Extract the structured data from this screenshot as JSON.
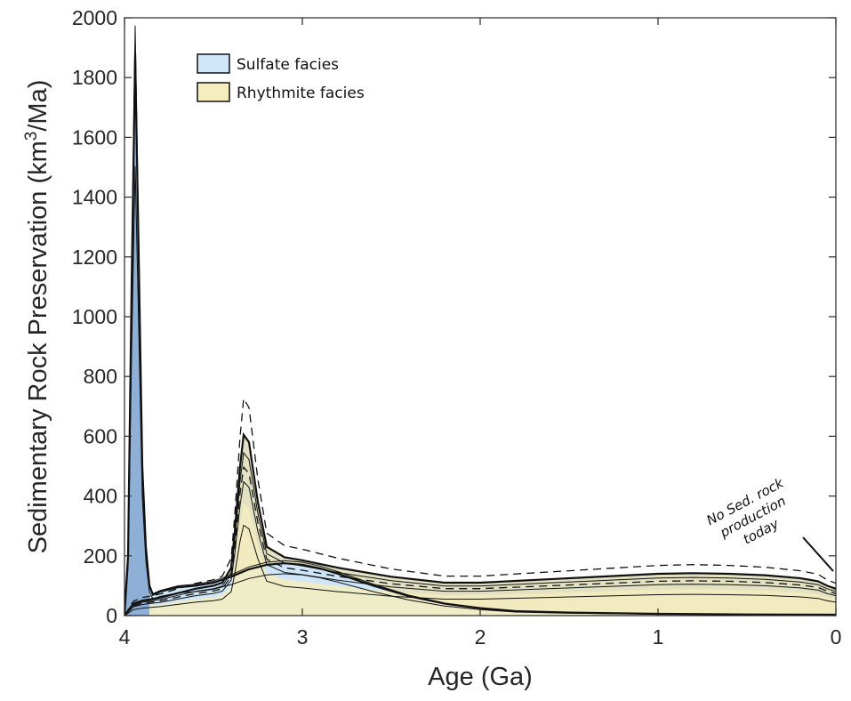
{
  "chart_data": {
    "type": "area",
    "title": "",
    "xlabel": "Age (Ga)",
    "ylabel_main": "Sedimentary Rock Preservation (km",
    "ylabel_sup": "3",
    "ylabel_end": "/Ma)",
    "xlim": [
      4,
      0
    ],
    "ylim": [
      0,
      2000
    ],
    "xticks": [
      4,
      3,
      2,
      1,
      0
    ],
    "yticks": [
      0,
      200,
      400,
      600,
      800,
      1000,
      1200,
      1400,
      1600,
      1800,
      2000
    ],
    "grid": false,
    "legend_position": "top-left",
    "colors": {
      "sulfate": "#cfe6f8",
      "rhythmite": "#f5ecbf",
      "overlap": "#e2e1c2",
      "spike": "#8fb0d6",
      "line": "#111111",
      "axis": "#262626"
    },
    "series": [
      {
        "name": "Sulfate facies",
        "x": [
          4.0,
          3.98,
          3.96,
          3.94,
          3.92,
          3.9,
          3.88,
          3.86,
          3.84,
          3.8,
          3.7,
          3.6,
          3.5,
          3.4,
          3.3,
          3.2,
          3.1,
          3.0,
          2.9,
          2.8,
          2.6,
          2.4,
          2.2,
          2.0,
          1.8,
          1.5,
          1.0,
          0.5,
          0.0
        ],
        "values": [
          0,
          200,
          1100,
          1880,
          1200,
          500,
          230,
          100,
          70,
          80,
          95,
          100,
          110,
          130,
          155,
          170,
          175,
          170,
          158,
          140,
          100,
          65,
          40,
          25,
          15,
          10,
          6,
          4,
          3
        ]
      },
      {
        "name": "Rhythmite facies",
        "x": [
          4.0,
          3.95,
          3.9,
          3.85,
          3.8,
          3.7,
          3.6,
          3.5,
          3.45,
          3.4,
          3.38,
          3.35,
          3.33,
          3.3,
          3.25,
          3.2,
          3.1,
          3.0,
          2.8,
          2.5,
          2.2,
          2.0,
          1.5,
          1.0,
          0.8,
          0.6,
          0.4,
          0.2,
          0.1,
          0.05,
          0.0
        ],
        "values": [
          0,
          40,
          50,
          55,
          60,
          75,
          90,
          100,
          110,
          160,
          280,
          500,
          605,
          580,
          380,
          230,
          195,
          185,
          160,
          130,
          110,
          110,
          125,
          140,
          142,
          140,
          135,
          125,
          115,
          100,
          90
        ]
      }
    ],
    "legend": [
      {
        "label": "Sulfate facies",
        "key": "sulfate"
      },
      {
        "label": "Rhythmite facies",
        "key": "rhythmite"
      }
    ],
    "annotation": {
      "lines": [
        "No Sed. rock",
        "production",
        "today"
      ],
      "at_age": 0.05,
      "at_value": 140
    }
  }
}
